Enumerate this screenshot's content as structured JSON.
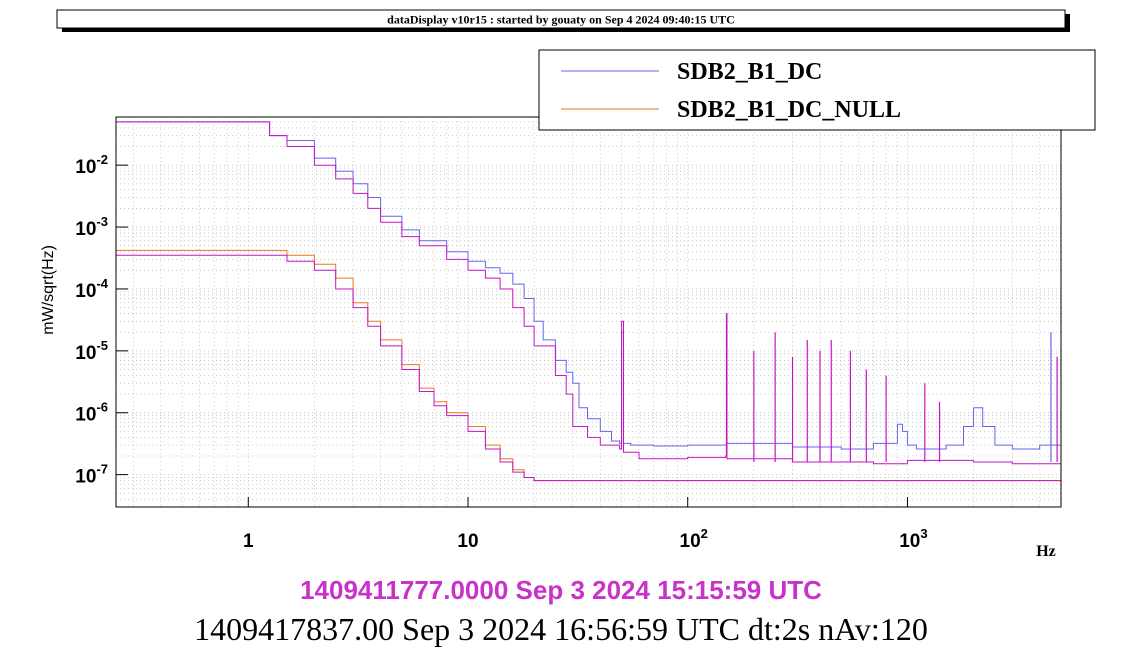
{
  "header": {
    "title": "dataDisplay v10r15 : started by gouaty on Sep  4 2024 09:40:15 UTC"
  },
  "footer": {
    "line1": "1409411777.0000 Sep 3 2024 15:15:59 UTC",
    "line2": "1409417837.00 Sep 3 2024 16:56:59 UTC dt:2s nAv:120"
  },
  "colors": {
    "blue": "#6464f0",
    "orange": "#e8781e",
    "magenta": "#c414c4",
    "footer_magenta": "#c832c8",
    "text": "#000000"
  },
  "chart_data": {
    "type": "line",
    "xscale": "log",
    "yscale": "log",
    "xlabel": "Hz",
    "ylabel": "mW/sqrt(Hz)",
    "xlim": [
      0.25,
      5000
    ],
    "ylim": [
      3e-08,
      0.06
    ],
    "grid": true,
    "legend_placement": "top-right",
    "x_ticks": [
      {
        "value": 1,
        "base": "1",
        "exp": ""
      },
      {
        "value": 10,
        "base": "10",
        "exp": ""
      },
      {
        "value": 100,
        "base": "10",
        "exp": "2"
      },
      {
        "value": 1000,
        "base": "10",
        "exp": "3"
      }
    ],
    "y_ticks": [
      {
        "value": 1e-07,
        "base": "10",
        "exp": "-7"
      },
      {
        "value": 1e-06,
        "base": "10",
        "exp": "-6"
      },
      {
        "value": 1e-05,
        "base": "10",
        "exp": "-5"
      },
      {
        "value": 0.0001,
        "base": "10",
        "exp": "-4"
      },
      {
        "value": 0.001,
        "base": "10",
        "exp": "-3"
      },
      {
        "value": 0.01,
        "base": "10",
        "exp": "-2"
      }
    ],
    "series": [
      {
        "name": "SDB2_B1_DC",
        "legend": true,
        "color": "#6464f0",
        "x": [
          0.25,
          1.25,
          1.5,
          2.0,
          2.5,
          3.0,
          3.5,
          4.0,
          5.0,
          6.0,
          8.0,
          10.0,
          12.0,
          14.0,
          16.0,
          18.0,
          20.0,
          22.0,
          25.0,
          28.0,
          30.0,
          32.0,
          35.0,
          40.0,
          45.0,
          49.0,
          50.0,
          51.0,
          55.0,
          60.0,
          70.0,
          80.0,
          100.0,
          120.0,
          150.0,
          200.0,
          300.0,
          500.0,
          700.0,
          900.0,
          950.0,
          1000.0,
          1100.0,
          1500.0,
          1800.0,
          2000.0,
          2200.0,
          2500.0,
          3000.0,
          4000.0,
          5000.0
        ],
        "y": [
          0.05,
          0.03,
          0.025,
          0.013,
          0.008,
          0.005,
          0.003,
          0.0015,
          0.0009,
          0.0006,
          0.0004,
          0.00028,
          0.00022,
          0.00018,
          0.00012,
          7e-05,
          3e-05,
          1.5e-05,
          7e-06,
          4.5e-06,
          3e-06,
          1.2e-06,
          8e-07,
          5e-07,
          3.5e-07,
          3.2e-07,
          2e-05,
          3.2e-07,
          3e-07,
          3e-07,
          2.9e-07,
          2.9e-07,
          3e-07,
          3e-07,
          3.2e-07,
          3.2e-07,
          2.8e-07,
          2.6e-07,
          3.2e-07,
          6.5e-07,
          5e-07,
          3e-07,
          2.6e-07,
          3e-07,
          6e-07,
          1.2e-06,
          6e-07,
          3e-07,
          2.6e-07,
          3e-07,
          5e-07
        ]
      },
      {
        "name": "SDB2_B1_DC_NULL",
        "legend": true,
        "color": "#e8781e",
        "x": [
          0.25,
          0.75,
          1.5,
          2.0,
          2.5,
          3.0,
          3.5,
          4.0,
          5.0,
          6.0,
          7.0,
          8.0,
          10.0,
          12.0,
          14.0,
          16.0,
          18.0,
          20.0,
          30.0,
          100.0,
          1000.0,
          5000.0
        ],
        "y": [
          0.00042,
          0.00042,
          0.00035,
          0.00025,
          0.00015,
          6e-05,
          3e-05,
          1.5e-05,
          6e-06,
          2.5e-06,
          1.5e-06,
          1e-06,
          6e-07,
          3e-07,
          1.8e-07,
          1.2e-07,
          9e-08,
          8e-08,
          8e-08,
          8e-08,
          8e-08,
          8e-08
        ]
      },
      {
        "name": "",
        "legend": false,
        "color": "#c414c4",
        "x": [
          0.25,
          0.75,
          1.5,
          2.0,
          2.5,
          3.0,
          3.5,
          4.0,
          5.0,
          6.0,
          7.0,
          8.0,
          10.0,
          12.0,
          14.0,
          16.0,
          18.0,
          20.0,
          30.0,
          100.0,
          1000.0,
          5000.0
        ],
        "y": [
          0.00035,
          0.00035,
          0.00028,
          0.0002,
          0.0001,
          5e-05,
          2.5e-05,
          1.2e-05,
          5e-06,
          2.2e-06,
          1.3e-06,
          9e-07,
          5e-07,
          2.6e-07,
          1.6e-07,
          1.1e-07,
          9e-08,
          8e-08,
          8e-08,
          8e-08,
          8e-08,
          8e-08
        ]
      },
      {
        "name": "",
        "legend": false,
        "color": "#c414c4",
        "x": [
          0.25,
          1.25,
          1.5,
          2.0,
          2.5,
          3.0,
          3.5,
          4.0,
          5.0,
          6.0,
          8.0,
          10.0,
          12.0,
          14.0,
          16.0,
          18.0,
          20.0,
          25.0,
          28.0,
          30.0,
          35.0,
          40.0,
          49.0,
          50.0,
          51.0,
          60.0,
          100.0,
          149.0,
          150.0,
          151.0,
          300.0,
          700.0,
          1000.0,
          2000.0,
          3000.0,
          5000.0
        ],
        "y": [
          0.05,
          0.03,
          0.02,
          0.01,
          0.006,
          0.0035,
          0.002,
          0.0012,
          0.0007,
          0.0005,
          0.0003,
          0.0002,
          0.00015,
          0.0001,
          5e-05,
          2.5e-05,
          1.2e-05,
          4e-06,
          2e-06,
          6e-07,
          4e-07,
          3e-07,
          2.6e-07,
          3e-05,
          2.3e-07,
          1.8e-07,
          1.9e-07,
          2e-07,
          4e-05,
          1.8e-07,
          1.6e-07,
          1.5e-07,
          1.7e-07,
          1.6e-07,
          1.5e-07,
          1.8e-07
        ]
      }
    ],
    "spikes": [
      {
        "x": 200,
        "y": 1e-05,
        "color": "#c414c4"
      },
      {
        "x": 250,
        "y": 2e-05,
        "color": "#c414c4"
      },
      {
        "x": 300,
        "y": 8e-06,
        "color": "#c414c4"
      },
      {
        "x": 350,
        "y": 1.5e-05,
        "color": "#c414c4"
      },
      {
        "x": 400,
        "y": 1e-05,
        "color": "#c414c4"
      },
      {
        "x": 450,
        "y": 1.5e-05,
        "color": "#c414c4"
      },
      {
        "x": 550,
        "y": 1e-05,
        "color": "#c414c4"
      },
      {
        "x": 650,
        "y": 5e-06,
        "color": "#c414c4"
      },
      {
        "x": 800,
        "y": 4e-06,
        "color": "#c414c4"
      },
      {
        "x": 1200,
        "y": 3e-06,
        "color": "#c414c4"
      },
      {
        "x": 1400,
        "y": 1.5e-06,
        "color": "#c414c4"
      },
      {
        "x": 4500,
        "y": 2e-05,
        "color": "#6464f0"
      },
      {
        "x": 4800,
        "y": 8e-06,
        "color": "#c414c4"
      }
    ],
    "legend_entries": [
      {
        "label": "SDB2_B1_DC",
        "color": "#6464f0"
      },
      {
        "label": "SDB2_B1_DC_NULL",
        "color": "#e8781e"
      }
    ]
  }
}
